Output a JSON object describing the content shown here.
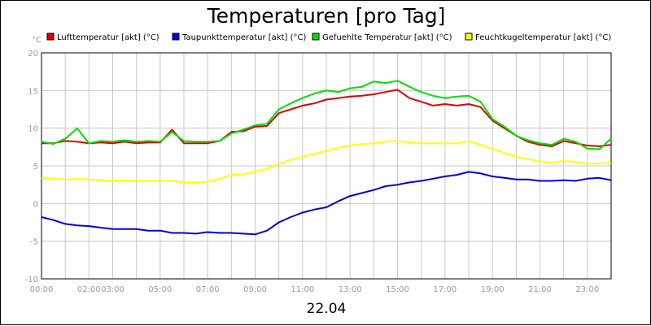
{
  "chart_data": {
    "type": "line",
    "title": "Temperaturen [pro Tag]",
    "date_label": "22.04",
    "y_unit": "°C",
    "ylim": [
      -10,
      20
    ],
    "y_ticks": [
      "-10",
      "-5",
      "0",
      "5",
      "10",
      "15",
      "20"
    ],
    "x_range_hours": [
      0,
      24
    ],
    "x_ticks": [
      {
        "label": "00:00",
        "hour": 0
      },
      {
        "label": "02:00",
        "hour": 2
      },
      {
        "label": "03:00",
        "hour": 3
      },
      {
        "label": "05:00",
        "hour": 5
      },
      {
        "label": "07:00",
        "hour": 7
      },
      {
        "label": "09:00",
        "hour": 9
      },
      {
        "label": "11:00",
        "hour": 11
      },
      {
        "label": "13:00",
        "hour": 13
      },
      {
        "label": "15:00",
        "hour": 15
      },
      {
        "label": "17:00",
        "hour": 17
      },
      {
        "label": "19:00",
        "hour": 19
      },
      {
        "label": "21:00",
        "hour": 21
      },
      {
        "label": "23:00",
        "hour": 23
      }
    ],
    "grid": true,
    "legend_position": "top",
    "series": [
      {
        "name": "Lufttemperatur [akt] (°C)",
        "color": "#e00000",
        "x": [
          0,
          0.5,
          1,
          1.5,
          2,
          2.5,
          3,
          3.5,
          4,
          4.5,
          5,
          5.5,
          6,
          6.5,
          7,
          7.5,
          8,
          8.5,
          9,
          9.5,
          10,
          10.5,
          11,
          11.5,
          12,
          12.5,
          13,
          13.5,
          14,
          14.5,
          15,
          15.5,
          16,
          16.5,
          17,
          17.5,
          18,
          18.5,
          19,
          19.5,
          20,
          20.5,
          21,
          21.5,
          22,
          22.5,
          23,
          23.5,
          24
        ],
        "y": [
          8.0,
          8.0,
          8.3,
          8.2,
          8.0,
          8.1,
          8.0,
          8.2,
          8.0,
          8.1,
          8.1,
          9.8,
          8.0,
          8.0,
          8.0,
          8.3,
          9.5,
          9.6,
          10.2,
          10.3,
          12.0,
          12.5,
          13.0,
          13.3,
          13.8,
          14.0,
          14.2,
          14.3,
          14.5,
          14.8,
          15.1,
          14.0,
          13.5,
          13.0,
          13.2,
          13.0,
          13.2,
          12.8,
          11.0,
          10.0,
          9.0,
          8.2,
          7.8,
          7.6,
          8.3,
          8.0,
          7.7,
          7.6,
          7.8
        ]
      },
      {
        "name": "Taupunkttemperatur [akt] (°C)",
        "color": "#0000dd",
        "x": [
          0,
          0.5,
          1,
          1.5,
          2,
          2.5,
          3,
          3.5,
          4,
          4.5,
          5,
          5.5,
          6,
          6.5,
          7,
          7.5,
          8,
          8.5,
          9,
          9.5,
          10,
          10.5,
          11,
          11.5,
          12,
          12.5,
          13,
          13.5,
          14,
          14.5,
          15,
          15.5,
          16,
          16.5,
          17,
          17.5,
          18,
          18.5,
          19,
          19.5,
          20,
          20.5,
          21,
          21.5,
          22,
          22.5,
          23,
          23.5,
          24
        ],
        "y": [
          -1.8,
          -2.2,
          -2.7,
          -2.9,
          -3.0,
          -3.2,
          -3.4,
          -3.4,
          -3.4,
          -3.6,
          -3.6,
          -3.9,
          -3.9,
          -4.0,
          -3.8,
          -3.9,
          -3.9,
          -4.0,
          -4.1,
          -3.6,
          -2.5,
          -1.8,
          -1.2,
          -0.8,
          -0.5,
          0.3,
          1.0,
          1.4,
          1.8,
          2.3,
          2.5,
          2.8,
          3.0,
          3.3,
          3.6,
          3.8,
          4.2,
          4.0,
          3.6,
          3.4,
          3.2,
          3.2,
          3.0,
          3.0,
          3.1,
          3.0,
          3.3,
          3.4,
          3.1
        ]
      },
      {
        "name": "Gefuehlte Temperatur [akt] (°C)",
        "color": "#00e000",
        "x": [
          0,
          0.5,
          1,
          1.5,
          2,
          2.5,
          3,
          3.5,
          4,
          4.5,
          5,
          5.5,
          6,
          6.5,
          7,
          7.5,
          8,
          8.5,
          9,
          9.5,
          10,
          10.5,
          11,
          11.5,
          12,
          12.5,
          13,
          13.5,
          14,
          14.5,
          15,
          15.5,
          16,
          16.5,
          17,
          17.5,
          18,
          18.5,
          19,
          19.5,
          20,
          20.5,
          21,
          21.5,
          22,
          22.5,
          23,
          23.5,
          24
        ],
        "y": [
          8.2,
          7.9,
          8.6,
          10.0,
          8.0,
          8.3,
          8.2,
          8.4,
          8.2,
          8.3,
          8.2,
          9.5,
          8.3,
          8.2,
          8.2,
          8.3,
          9.3,
          9.8,
          10.4,
          10.6,
          12.5,
          13.3,
          14.0,
          14.6,
          15.0,
          14.8,
          15.3,
          15.5,
          16.2,
          16.0,
          16.3,
          15.5,
          14.8,
          14.3,
          14.0,
          14.2,
          14.3,
          13.5,
          11.2,
          10.2,
          9.0,
          8.4,
          8.0,
          7.8,
          8.6,
          8.2,
          7.3,
          7.2,
          8.6
        ]
      },
      {
        "name": "Feuchtkugeltemperatur [akt] (°C)",
        "color": "#ffff00",
        "x": [
          0,
          0.5,
          1,
          1.5,
          2,
          2.5,
          3,
          3.5,
          4,
          4.5,
          5,
          5.5,
          6,
          6.5,
          7,
          7.5,
          8,
          8.5,
          9,
          9.5,
          10,
          10.5,
          11,
          11.5,
          12,
          12.5,
          13,
          13.5,
          14,
          14.5,
          15,
          15.5,
          16,
          16.5,
          17,
          17.5,
          18,
          18.5,
          19,
          19.5,
          20,
          20.5,
          21,
          21.5,
          22,
          22.5,
          23,
          23.5,
          24
        ],
        "y": [
          3.4,
          3.3,
          3.2,
          3.3,
          3.2,
          3.1,
          3.0,
          3.1,
          3.0,
          3.0,
          3.0,
          3.0,
          2.8,
          2.8,
          2.9,
          3.3,
          3.8,
          3.9,
          4.2,
          4.6,
          5.3,
          5.8,
          6.2,
          6.6,
          7.0,
          7.4,
          7.7,
          7.9,
          8.0,
          8.2,
          8.3,
          8.1,
          8.0,
          8.0,
          8.0,
          8.0,
          8.3,
          7.8,
          7.3,
          6.7,
          6.2,
          5.9,
          5.6,
          5.4,
          5.7,
          5.5,
          5.3,
          5.3,
          5.4
        ]
      }
    ]
  }
}
